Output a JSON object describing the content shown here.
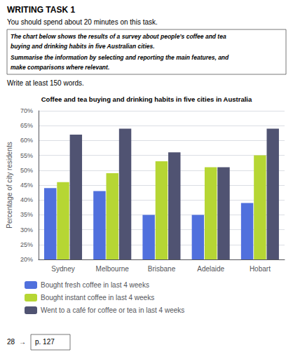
{
  "chart_data": {
    "type": "bar",
    "title": "Coffee and tea buying and drinking habits in five cities in Australia",
    "categories": [
      "Sydney",
      "Melbourne",
      "Brisbane",
      "Adelaide",
      "Hobart"
    ],
    "series": [
      {
        "name": "Bought fresh coffee in last 4 weeks",
        "values": [
          44,
          43,
          35,
          35,
          39
        ]
      },
      {
        "name": "Bought instant coffee in last 4 weeks",
        "values": [
          46,
          49,
          53,
          51,
          55
        ]
      },
      {
        "name": "Went to a café for coffee or tea in last 4 weeks",
        "values": [
          62,
          64,
          56,
          51,
          64
        ]
      }
    ],
    "ylabel": "Percentage of city residents",
    "ylim": [
      20,
      70
    ],
    "yticks": [
      {
        "value": 20,
        "label": "20%"
      },
      {
        "value": 25,
        "label": "25%"
      },
      {
        "value": 30,
        "label": "30%"
      },
      {
        "value": 35,
        "label": "35%"
      },
      {
        "value": 40,
        "label": "40%"
      },
      {
        "value": 45,
        "label": "45%"
      },
      {
        "value": 50,
        "label": "50%"
      },
      {
        "value": 55,
        "label": "55%"
      },
      {
        "value": 60,
        "label": "60%"
      },
      {
        "value": 65,
        "label": "65%"
      },
      {
        "value": 70,
        "label": "70%"
      }
    ],
    "grid": true,
    "legend": "bottom",
    "annotations": [
      "WRITING TASK 1",
      "You should spend about 20 minutes on this task.",
      "The chart below shows the results of a survey about people’s coffee and tea",
      "buying and drinking habits in five Australian cities.",
      "Summarise the information by selecting and reporting the main features, and",
      "make comparisons where relevant.",
      "Write at least 150 words.",
      "28",
      "→",
      "p. 127"
    ]
  }
}
